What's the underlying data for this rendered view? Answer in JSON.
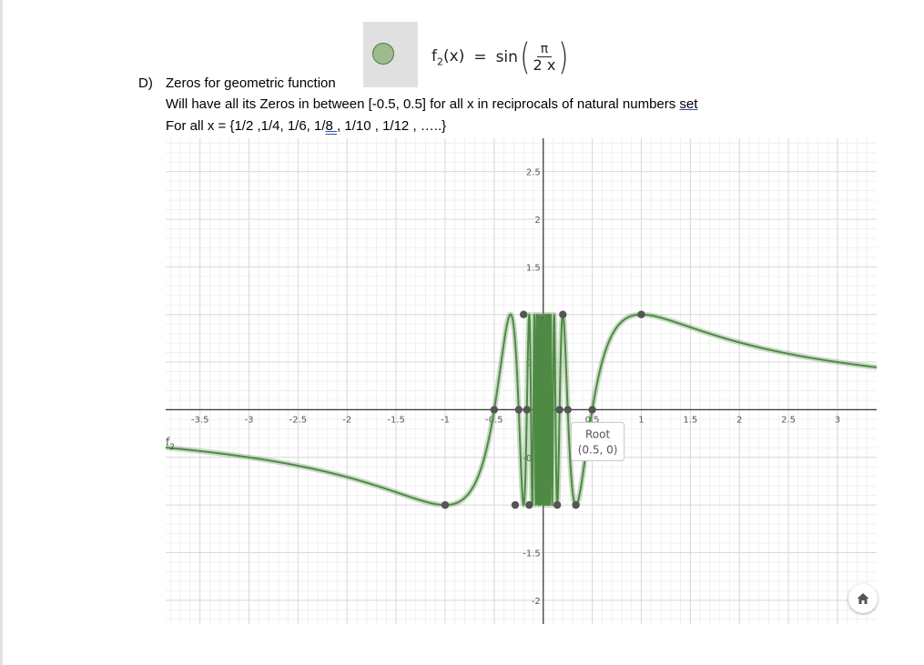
{
  "header": {
    "swatch_color": "#9dbb8f",
    "formula": {
      "fname": "f",
      "fsub": "2",
      "arg": "(x)",
      "eq": "=",
      "func": "sin",
      "num": "π",
      "den": "2 x"
    }
  },
  "text": {
    "label": "D)",
    "heading": "Zeros for geometric function",
    "line2_pre": "Will have all its Zeros in between [-0.5, 0.5] for all x in reciprocals of natural numbers ",
    "line2_underlined": "set",
    "line3_pre": "For all x = {1/2 ,1/4, 1/6, 1/",
    "line3_underlined": "8 ,",
    "line3_post": " 1/10 , 1/12 , …..}"
  },
  "graph": {
    "curve_color": "#4e8a43",
    "point_color": "#555555",
    "function_label": "f",
    "function_label_sub": "2",
    "tooltip": {
      "title": "Root",
      "value": "(0.5, 0)"
    }
  },
  "chart_data": {
    "type": "line",
    "function": "sin(pi/(2x))",
    "series": [
      {
        "name": "f2"
      }
    ],
    "xlim": [
      -3.85,
      3.4
    ],
    "ylim": [
      -2.25,
      2.85
    ],
    "x_ticks": [
      "-3.5",
      "-3",
      "-2.5",
      "-2",
      "-1.5",
      "-1",
      "-0.5",
      "0",
      "0.5",
      "1",
      "1.5",
      "2",
      "2.5",
      "3",
      "3"
    ],
    "y_ticks": [
      "2.5",
      "2",
      "1.5",
      "0.5",
      "-0.5",
      "-1.5",
      "-2"
    ],
    "grid": true,
    "roots": [
      -0.5,
      -0.25,
      -0.1667,
      0.1667,
      0.25,
      0.5
    ],
    "maxima": [
      [
        1,
        1
      ],
      [
        -0.2,
        1
      ],
      [
        0.2,
        1
      ]
    ],
    "minima": [
      [
        -1,
        -1
      ],
      [
        -0.2857,
        -1
      ],
      [
        0.3333,
        -1
      ],
      [
        -0.1429,
        -1
      ],
      [
        0.1429,
        -1
      ]
    ]
  }
}
